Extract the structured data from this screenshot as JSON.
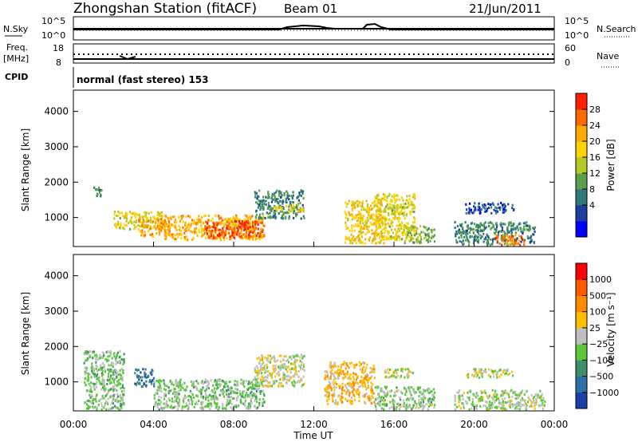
{
  "header": {
    "station": "Zhongshan Station (fitACF)",
    "beam": "Beam 01",
    "date": "21/Jun/2011"
  },
  "summary_panels": {
    "nsky_label": "N.Sky",
    "nsearch_label": "N.Search",
    "noise_ticks": [
      "10^5",
      "10^0"
    ],
    "freq_label_line1": "Freq.",
    "freq_label_line2": "[MHz]",
    "freq_ticks": [
      "18",
      "8"
    ],
    "nave_label": "Nave",
    "nave_ticks": [
      "60",
      "0"
    ],
    "cpid_label": "CPID",
    "cpid_text": "normal (fast stereo) 153"
  },
  "colorbars": {
    "power": {
      "label": "Power [dB]",
      "ticks": [
        "28",
        "24",
        "20",
        "16",
        "12",
        "8",
        "4"
      ],
      "colors": [
        "#0000ff",
        "#1e3fa0",
        "#2e7a7a",
        "#5aa04a",
        "#b5c828",
        "#ffd400",
        "#ffaa00",
        "#ff6a00",
        "#ff1e00"
      ]
    },
    "velocity": {
      "label": "Velocity [m s⁻¹]",
      "ticks": [
        "1000",
        "500",
        "100",
        "25",
        "−25",
        "−100",
        "−500",
        "−1000"
      ],
      "colors": [
        "#1a3fa8",
        "#2f6fa8",
        "#3f8f6a",
        "#5ac83a",
        "#bfbfbf",
        "#ffbf00",
        "#ff8c00",
        "#ff5a00",
        "#ff0000"
      ]
    }
  },
  "axes": {
    "ylabel": "Slant Range [km]",
    "xlabel": "Time UT",
    "xticks": [
      "00:00",
      "04:00",
      "08:00",
      "12:00",
      "16:00",
      "20:00",
      "00:00"
    ],
    "yticks": [
      "4000",
      "3000",
      "2000",
      "1000"
    ]
  },
  "chart_data": [
    {
      "type": "heatmap",
      "title": "",
      "quantity": "Power [dB]",
      "xlabel": "",
      "ylabel": "Slant Range [km]",
      "xlim_hours": [
        0,
        24
      ],
      "ylim": [
        180,
        4600
      ],
      "clim": [
        0,
        32
      ],
      "blobs": [
        {
          "t0": 1.0,
          "t1": 1.4,
          "r0": 1600,
          "r1": 1900,
          "v": 10
        },
        {
          "t0": 2.0,
          "t1": 4.5,
          "r0": 700,
          "r1": 1200,
          "v": 18
        },
        {
          "t0": 3.2,
          "t1": 4.8,
          "r0": 500,
          "r1": 1000,
          "v": 24
        },
        {
          "t0": 4.5,
          "t1": 9.5,
          "r0": 400,
          "r1": 1100,
          "v": 22
        },
        {
          "t0": 6.5,
          "t1": 9.5,
          "r0": 450,
          "r1": 950,
          "v": 28
        },
        {
          "t0": 9.0,
          "t1": 11.5,
          "r0": 1000,
          "r1": 1800,
          "v": 10
        },
        {
          "t0": 10.0,
          "t1": 11.5,
          "r0": 1200,
          "r1": 1400,
          "v": 18
        },
        {
          "t0": 13.5,
          "t1": 15.5,
          "r0": 300,
          "r1": 1500,
          "v": 20
        },
        {
          "t0": 15.0,
          "t1": 17.0,
          "r0": 400,
          "r1": 1700,
          "v": 18
        },
        {
          "t0": 15.5,
          "t1": 17.0,
          "r0": 1200,
          "r1": 1400,
          "v": 16
        },
        {
          "t0": 16.5,
          "t1": 18.0,
          "r0": 300,
          "r1": 800,
          "v": 14
        },
        {
          "t0": 19.0,
          "t1": 23.0,
          "r0": 250,
          "r1": 900,
          "v": 10
        },
        {
          "t0": 21.0,
          "t1": 22.5,
          "r0": 250,
          "r1": 550,
          "v": 26
        },
        {
          "t0": 19.5,
          "t1": 22.0,
          "r0": 1150,
          "r1": 1450,
          "v": 6
        }
      ]
    },
    {
      "type": "heatmap",
      "title": "",
      "quantity": "Velocity [m s-1]",
      "xlabel": "Time UT",
      "ylabel": "Slant Range [km]",
      "xlim_hours": [
        0,
        24
      ],
      "ylim": [
        180,
        4600
      ],
      "clim": [
        -1200,
        1200
      ],
      "blobs": [
        {
          "t0": 0.5,
          "t1": 2.5,
          "r0": 250,
          "r1": 1900,
          "v": -200
        },
        {
          "t0": 3.0,
          "t1": 4.0,
          "r0": 900,
          "r1": 1400,
          "v": -800
        },
        {
          "t0": 4.0,
          "t1": 9.5,
          "r0": 250,
          "r1": 1100,
          "v": -200
        },
        {
          "t0": 9.0,
          "t1": 11.5,
          "r0": 900,
          "r1": 1800,
          "v": 0
        },
        {
          "t0": 12.5,
          "t1": 15.0,
          "r0": 400,
          "r1": 1600,
          "v": 300
        },
        {
          "t0": 15.5,
          "t1": 17.0,
          "r0": 1150,
          "r1": 1400,
          "v": 0
        },
        {
          "t0": 15.0,
          "t1": 18.0,
          "r0": 250,
          "r1": 900,
          "v": -150
        },
        {
          "t0": 19.0,
          "t1": 23.5,
          "r0": 250,
          "r1": 800,
          "v": -80
        },
        {
          "t0": 19.5,
          "t1": 22.0,
          "r0": 1150,
          "r1": 1400,
          "v": 0
        }
      ]
    }
  ]
}
